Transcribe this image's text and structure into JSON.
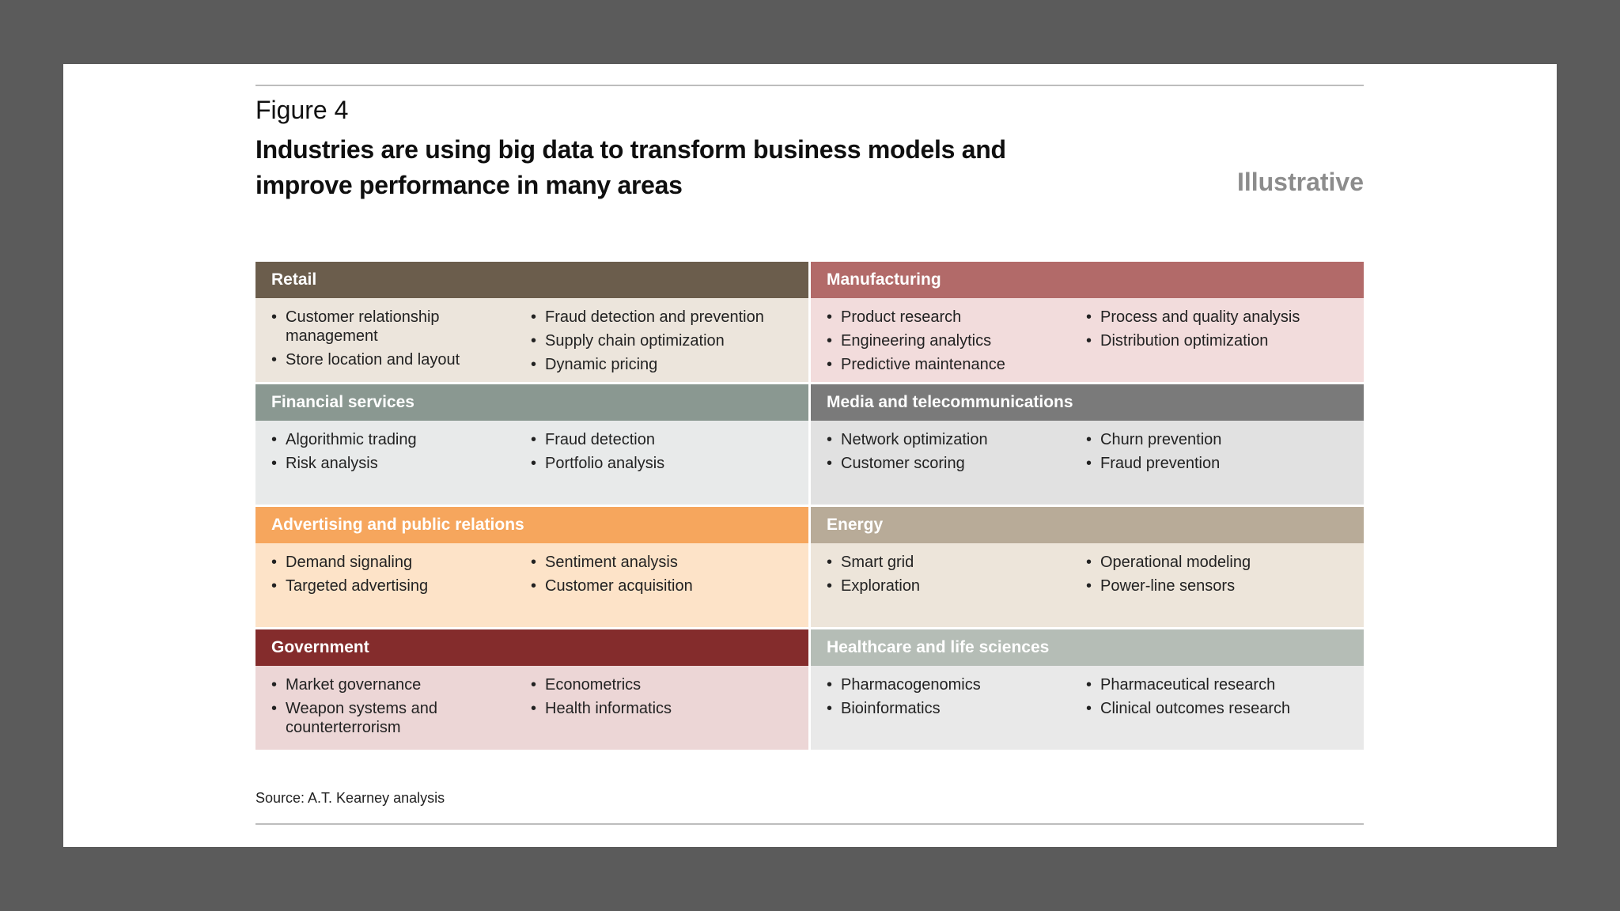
{
  "figure": {
    "label": "Figure 4",
    "title": "Industries are using big data to transform business models and improve performance in many areas",
    "tag": "Illustrative",
    "source": "Source: A.T. Kearney analysis"
  },
  "panels": [
    {
      "title": "Retail",
      "header_color": "#6b5d4c",
      "body_color": "#ece5dc",
      "col1": [
        "Customer relationship management",
        "Store location and layout"
      ],
      "col2": [
        "Fraud detection and prevention",
        "Supply chain optimization",
        "Dynamic pricing"
      ]
    },
    {
      "title": "Manufacturing",
      "header_color": "#b26a69",
      "body_color": "#f2dcdc",
      "col1": [
        "Product research",
        "Engineering analytics",
        "Predictive maintenance"
      ],
      "col2": [
        "Process and quality analysis",
        "Distribution optimization"
      ]
    },
    {
      "title": "Financial services",
      "header_color": "#8a9891",
      "body_color": "#e8eaea",
      "col1": [
        "Algorithmic trading",
        "Risk analysis"
      ],
      "col2": [
        "Fraud detection",
        "Portfolio analysis"
      ]
    },
    {
      "title": "Media and telecommunications",
      "header_color": "#7a7a7a",
      "body_color": "#e1e1e1",
      "col1": [
        "Network optimization",
        "Customer scoring"
      ],
      "col2": [
        "Churn prevention",
        "Fraud prevention"
      ]
    },
    {
      "title": "Advertising and public relations",
      "header_color": "#f6a65d",
      "body_color": "#fde3c8",
      "col1": [
        "Demand signaling",
        "Targeted advertising"
      ],
      "col2": [
        "Sentiment analysis",
        "Customer acquisition"
      ]
    },
    {
      "title": "Energy",
      "header_color": "#b8ab98",
      "body_color": "#ede5da",
      "col1": [
        "Smart grid",
        "Exploration"
      ],
      "col2": [
        "Operational modeling",
        "Power-line sensors"
      ]
    },
    {
      "title": "Government",
      "header_color": "#842c2c",
      "body_color": "#ecd6d6",
      "col1": [
        "Market governance",
        "Weapon systems and counterterrorism"
      ],
      "col2": [
        "Econometrics",
        "Health informatics"
      ]
    },
    {
      "title": "Healthcare and life sciences",
      "header_color": "#b5bdb6",
      "body_color": "#e9e9e9",
      "col1": [
        "Pharmacogenomics",
        "Bioinformatics"
      ],
      "col2": [
        "Pharmaceutical research",
        "Clinical outcomes research"
      ]
    }
  ]
}
